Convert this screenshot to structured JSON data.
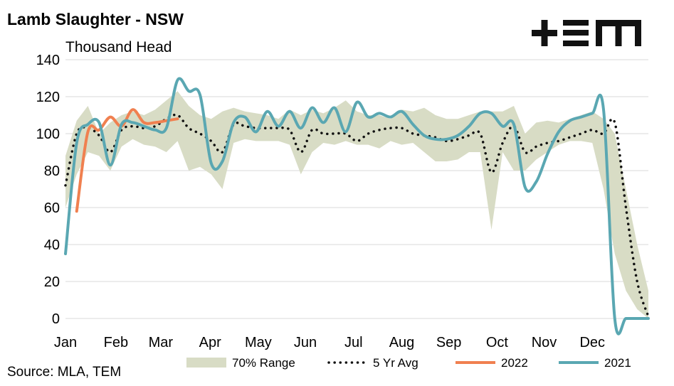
{
  "title": "Lamb Slaughter - NSW",
  "unit_label": "Thousand Head",
  "source": "Source: MLA, TEM",
  "logo_text": "+TEM",
  "colors": {
    "range": "#d8dcc5",
    "avg": "#111111",
    "y2022": "#f08050",
    "y2021": "#5aa7b2",
    "grid": "#d9d9d9"
  },
  "chart_data": {
    "type": "line",
    "title": "Lamb Slaughter - NSW",
    "ylabel": "Thousand Head",
    "ylim": [
      0,
      140
    ],
    "yticks": [
      0,
      20,
      40,
      60,
      80,
      100,
      120,
      140
    ],
    "xlim": [
      1,
      53
    ],
    "months": [
      {
        "label": "Jan",
        "week": 1
      },
      {
        "label": "Feb",
        "week": 5.5
      },
      {
        "label": "Mar",
        "week": 9.5
      },
      {
        "label": "Apr",
        "week": 13.9
      },
      {
        "label": "May",
        "week": 18.2
      },
      {
        "label": "Jun",
        "week": 22.4
      },
      {
        "label": "Jul",
        "week": 26.7
      },
      {
        "label": "Aug",
        "week": 31
      },
      {
        "label": "Sep",
        "week": 35.2
      },
      {
        "label": "Oct",
        "week": 39.5
      },
      {
        "label": "Nov",
        "week": 43.7
      },
      {
        "label": "Dec",
        "week": 48
      }
    ],
    "grid": true,
    "legend_position": "bottom",
    "series": [
      {
        "name": "70% Range",
        "kind": "band",
        "weeks": [
          1,
          2,
          3,
          4,
          5,
          6,
          7,
          8,
          9,
          10,
          11,
          12,
          13,
          14,
          15,
          16,
          17,
          18,
          19,
          20,
          21,
          22,
          23,
          24,
          25,
          26,
          27,
          28,
          29,
          30,
          31,
          32,
          33,
          34,
          35,
          36,
          37,
          38,
          39,
          40,
          41,
          42,
          43,
          44,
          45,
          46,
          47,
          48,
          49,
          50,
          51,
          52,
          53
        ],
        "upper": [
          88,
          107,
          115,
          100,
          106,
          110,
          112,
          110,
          113,
          118,
          123,
          115,
          110,
          108,
          112,
          114,
          112,
          111,
          110,
          108,
          113,
          110,
          113,
          111,
          114,
          118,
          112,
          110,
          110,
          108,
          113,
          112,
          114,
          110,
          108,
          108,
          110,
          112,
          112,
          112,
          115,
          100,
          106,
          107,
          106,
          108,
          110,
          112,
          108,
          100,
          70,
          40,
          15
        ],
        "lower": [
          60,
          78,
          90,
          88,
          80,
          93,
          97,
          94,
          93,
          90,
          96,
          80,
          82,
          78,
          70,
          95,
          97,
          96,
          96,
          96,
          94,
          78,
          90,
          95,
          94,
          96,
          94,
          94,
          92,
          96,
          94,
          95,
          90,
          85,
          85,
          86,
          90,
          90,
          48,
          90,
          80,
          80,
          86,
          90,
          94,
          96,
          96,
          95,
          70,
          35,
          15,
          5,
          0
        ]
      },
      {
        "name": "5 Yr Avg",
        "kind": "dotted",
        "weeks": [
          1,
          2,
          3,
          4,
          5,
          6,
          7,
          8,
          9,
          10,
          11,
          12,
          13,
          14,
          15,
          16,
          17,
          18,
          19,
          20,
          21,
          22,
          23,
          24,
          25,
          26,
          27,
          28,
          29,
          30,
          31,
          32,
          33,
          34,
          35,
          36,
          37,
          38,
          39,
          40,
          41,
          42,
          43,
          44,
          45,
          46,
          47,
          48,
          49,
          50,
          51,
          52,
          53
        ],
        "values": [
          72,
          100,
          103,
          99,
          90,
          102,
          104,
          103,
          104,
          108,
          110,
          103,
          100,
          96,
          90,
          105,
          104,
          103,
          103,
          103,
          102,
          90,
          102,
          100,
          100,
          100,
          96,
          100,
          102,
          103,
          103,
          100,
          99,
          98,
          96,
          97,
          99,
          100,
          79,
          95,
          104,
          90,
          93,
          95,
          96,
          98,
          100,
          102,
          100,
          106,
          60,
          20,
          1
        ]
      },
      {
        "name": "2022",
        "kind": "line",
        "weeks": [
          2,
          3,
          4,
          5,
          6,
          7,
          8,
          9,
          10,
          11
        ],
        "values": [
          58,
          101,
          102,
          109,
          104,
          113,
          106,
          106,
          107,
          108
        ]
      },
      {
        "name": "2021",
        "kind": "line",
        "weeks": [
          1,
          2,
          3,
          4,
          5,
          6,
          7,
          8,
          9,
          10,
          11,
          12,
          13,
          14,
          15,
          16,
          17,
          18,
          19,
          20,
          21,
          22,
          23,
          24,
          25,
          26,
          27,
          28,
          29,
          30,
          31,
          32,
          33,
          34,
          35,
          36,
          37,
          38,
          39,
          40,
          41,
          42,
          43,
          44,
          45,
          46,
          47,
          48,
          49,
          50,
          51,
          52,
          53
        ],
        "values": [
          35,
          95,
          105,
          106,
          83,
          105,
          106,
          104,
          102,
          103,
          129,
          123,
          121,
          84,
          85,
          106,
          109,
          101,
          112,
          104,
          112,
          103,
          114,
          106,
          114,
          101,
          117,
          109,
          111,
          109,
          112,
          105,
          99,
          97,
          97,
          99,
          104,
          111,
          111,
          104,
          105,
          71,
          74,
          89,
          101,
          107,
          109,
          111,
          113,
          0,
          0,
          0,
          0
        ]
      }
    ]
  }
}
